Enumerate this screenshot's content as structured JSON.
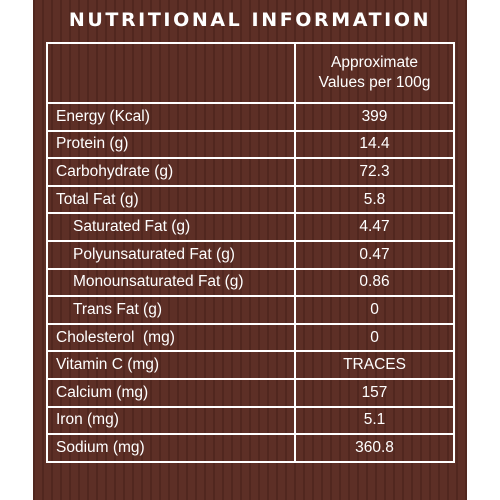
{
  "title": "NUTRITIONAL INFORMATION",
  "column_header_line1": "Approximate",
  "column_header_line2": "Values per 100g",
  "rows": [
    {
      "label": "Energy (Kcal)",
      "value": "399"
    },
    {
      "label": "Protein (g)",
      "value": "14.4"
    },
    {
      "label": "Carbohydrate (g)",
      "value": "72.3"
    },
    {
      "label": "Total Fat (g)",
      "value": "5.8"
    },
    {
      "label": "Saturated Fat (g)",
      "value": "4.47"
    },
    {
      "label": "Polyunsaturated Fat (g)",
      "value": "0.47"
    },
    {
      "label": "Monounsaturated Fat (g)",
      "value": "0.86"
    },
    {
      "label": "Trans Fat (g)",
      "value": "0"
    },
    {
      "label": "Cholesterol  (mg)",
      "value": "0"
    },
    {
      "label": "Vitamin C (mg)",
      "value": "TRACES"
    },
    {
      "label": "Calcium (mg)",
      "value": "157"
    },
    {
      "label": "Iron (mg)",
      "value": "5.1"
    },
    {
      "label": "Sodium (mg)",
      "value": "360.8"
    }
  ],
  "colors": {
    "background": "#5a2b22",
    "text": "#ffffff",
    "border": "#ffffff"
  }
}
